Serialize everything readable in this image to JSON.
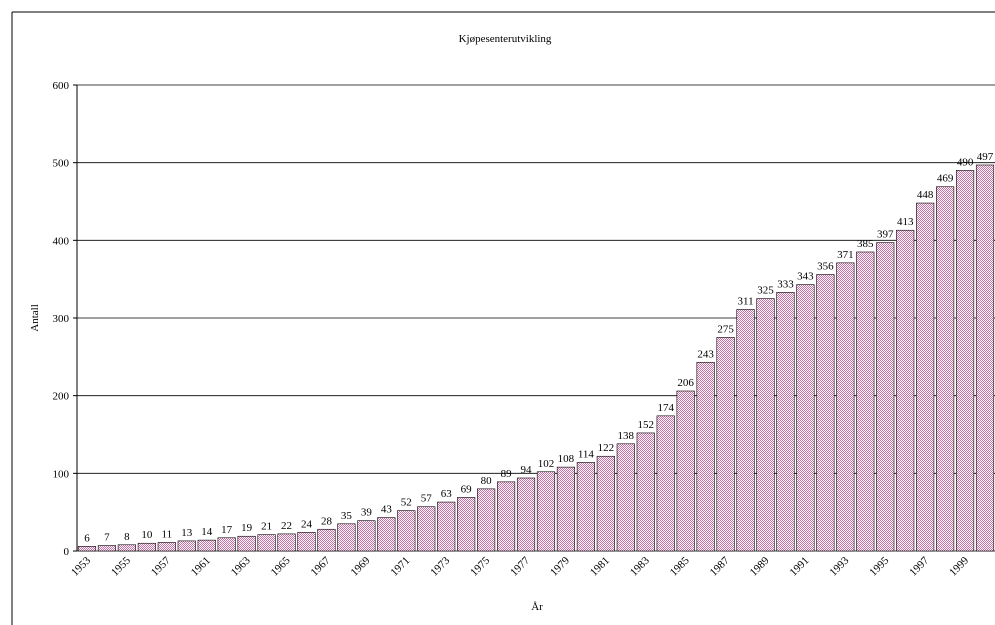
{
  "chart_data": {
    "type": "bar",
    "title": "Kjøpesenterutvikling",
    "xlabel": "År",
    "ylabel": "Antall",
    "categories": [
      "1953",
      null,
      "1955",
      null,
      "1957",
      null,
      "1961",
      null,
      "1963",
      null,
      "1965",
      null,
      "1967",
      null,
      "1969",
      null,
      "1971",
      null,
      "1973",
      null,
      "1975",
      null,
      "1977",
      null,
      "1979",
      null,
      "1981",
      null,
      "1983",
      null,
      "1985",
      null,
      "1987",
      null,
      "1989",
      null,
      "1991",
      null,
      "1993",
      null,
      "1995",
      null,
      "1997",
      null,
      "1999",
      null
    ],
    "values": [
      6,
      7,
      8,
      10,
      11,
      13,
      14,
      17,
      19,
      21,
      22,
      24,
      28,
      35,
      39,
      43,
      52,
      57,
      63,
      69,
      80,
      89,
      94,
      102,
      108,
      114,
      122,
      138,
      152,
      174,
      206,
      243,
      275,
      311,
      325,
      333,
      343,
      356,
      371,
      385,
      397,
      413,
      448,
      469,
      490,
      497
    ],
    "color": "#cc6fa8",
    "ylim": [
      0,
      600
    ],
    "yticks": [
      0,
      100,
      200,
      300,
      400,
      500,
      600
    ],
    "grid": true
  }
}
